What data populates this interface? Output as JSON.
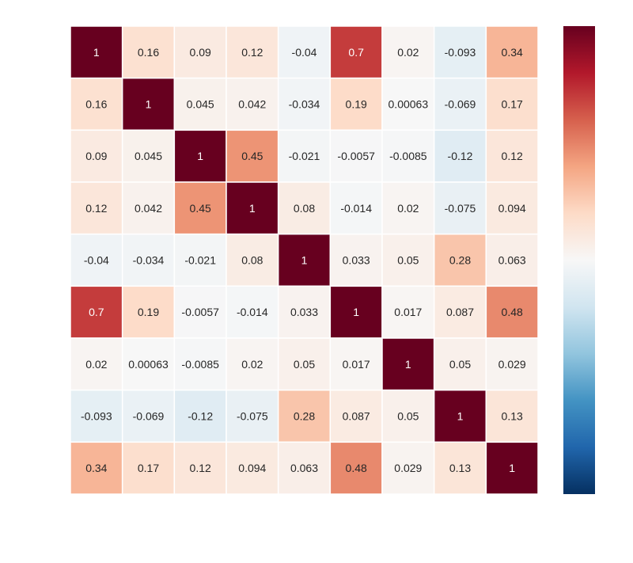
{
  "chart_data": {
    "type": "heatmap",
    "title": "",
    "row_labels": [
      "",
      "",
      "",
      "",
      "",
      "",
      "",
      "",
      ""
    ],
    "col_labels": [
      "",
      "",
      "",
      "",
      "",
      "",
      "",
      "",
      ""
    ],
    "values": [
      [
        1,
        0.16,
        0.09,
        0.12,
        -0.04,
        0.7,
        0.02,
        -0.093,
        0.34
      ],
      [
        0.16,
        1,
        0.045,
        0.042,
        -0.034,
        0.19,
        0.00063,
        -0.069,
        0.17
      ],
      [
        0.09,
        0.045,
        1,
        0.45,
        -0.021,
        -0.0057,
        -0.0085,
        -0.12,
        0.12
      ],
      [
        0.12,
        0.042,
        0.45,
        1,
        0.08,
        -0.014,
        0.02,
        -0.075,
        0.094
      ],
      [
        -0.04,
        -0.034,
        -0.021,
        0.08,
        1,
        0.033,
        0.05,
        0.28,
        0.063
      ],
      [
        0.7,
        0.19,
        -0.0057,
        -0.014,
        0.033,
        1,
        0.017,
        0.087,
        0.48
      ],
      [
        0.02,
        0.00063,
        -0.0085,
        0.02,
        0.05,
        0.017,
        1,
        0.05,
        0.029
      ],
      [
        -0.093,
        -0.069,
        -0.12,
        -0.075,
        0.28,
        0.087,
        0.05,
        1,
        0.13
      ],
      [
        0.34,
        0.17,
        0.12,
        0.094,
        0.063,
        0.48,
        0.029,
        0.13,
        1
      ]
    ],
    "value_labels": [
      [
        "1",
        "0.16",
        "0.09",
        "0.12",
        "-0.04",
        "0.7",
        "0.02",
        "-0.093",
        "0.34"
      ],
      [
        "0.16",
        "1",
        "0.045",
        "0.042",
        "-0.034",
        "0.19",
        "0.00063",
        "-0.069",
        "0.17"
      ],
      [
        "0.09",
        "0.045",
        "1",
        "0.45",
        "-0.021",
        "-0.0057",
        "-0.0085",
        "-0.12",
        "0.12"
      ],
      [
        "0.12",
        "0.042",
        "0.45",
        "1",
        "0.08",
        "-0.014",
        "0.02",
        "-0.075",
        "0.094"
      ],
      [
        "-0.04",
        "-0.034",
        "-0.021",
        "0.08",
        "1",
        "0.033",
        "0.05",
        "0.28",
        "0.063"
      ],
      [
        "0.7",
        "0.19",
        "-0.0057",
        "-0.014",
        "0.033",
        "1",
        "0.017",
        "0.087",
        "0.48"
      ],
      [
        "0.02",
        "0.00063",
        "-0.0085",
        "0.02",
        "0.05",
        "0.017",
        "1",
        "0.05",
        "0.029"
      ],
      [
        "-0.093",
        "-0.069",
        "-0.12",
        "-0.075",
        "0.28",
        "0.087",
        "0.05",
        "1",
        "0.13"
      ],
      [
        "0.34",
        "0.17",
        "0.12",
        "0.094",
        "0.063",
        "0.48",
        "0.029",
        "0.13",
        "1"
      ]
    ],
    "colormap": "RdBu_r",
    "vmin": -1,
    "vmax": 1,
    "colorbar": {
      "placement": "right",
      "ticks": [
        -0.8,
        -0.4,
        0,
        0.4,
        0.8
      ],
      "tick_labels": [
        "",
        "",
        "",
        "",
        ""
      ]
    },
    "grid": false
  }
}
